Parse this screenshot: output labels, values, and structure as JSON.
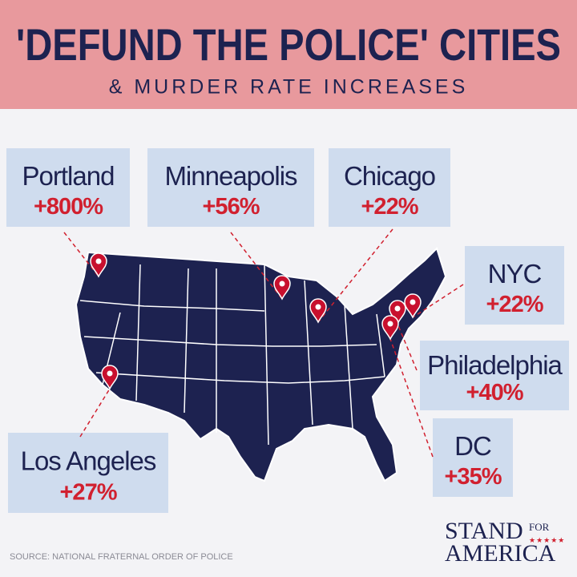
{
  "header": {
    "title": "'DEFUND THE POLICE' CITIES",
    "subtitle": "& MURDER RATE INCREASES"
  },
  "cities": [
    {
      "name": "Portland",
      "change": "+800%"
    },
    {
      "name": "Minneapolis",
      "change": "+56%"
    },
    {
      "name": "Chicago",
      "change": "+22%"
    },
    {
      "name": "NYC",
      "change": "+22%"
    },
    {
      "name": "Philadelphia",
      "change": "+40%"
    },
    {
      "name": "DC",
      "change": "+35%"
    },
    {
      "name": "Los Angeles",
      "change": "+27%"
    }
  ],
  "footer": {
    "source": "SOURCE: NATIONAL FRATERNAL ORDER OF POLICE",
    "logo": [
      "STAND",
      "FOR",
      "AMERICA"
    ]
  }
}
